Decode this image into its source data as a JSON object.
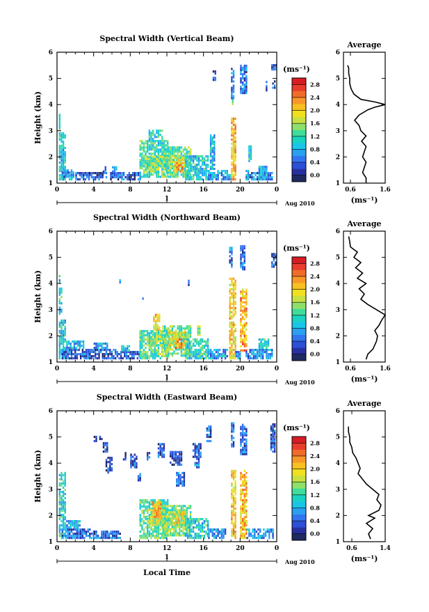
{
  "figure": {
    "xlabel": "Local Time",
    "date_label": "Aug 2010",
    "colorbar_unit": "(ms⁻¹)",
    "colorbar_ticks": [
      "0.0",
      "0.4",
      "0.8",
      "1.2",
      "1.6",
      "2.0",
      "2.4",
      "2.8"
    ],
    "colormap": [
      "#1f2a60",
      "#2730a0",
      "#2b4fd6",
      "#3275f0",
      "#2aa0f0",
      "#19c6e8",
      "#19d2c0",
      "#3fdc9a",
      "#8ee06a",
      "#c8e040",
      "#f0e020",
      "#f8c020",
      "#f89828",
      "#f06c28",
      "#e83c2c",
      "#d81c24"
    ]
  },
  "chart_data": [
    {
      "type": "heatmap",
      "title": "Spectral Width (Vertical Beam)",
      "ylabel": "Height (km)",
      "x_ticks": [
        "0",
        "4",
        "8",
        "12",
        "16",
        "20",
        "0"
      ],
      "y_ticks": [
        "1",
        "2",
        "3",
        "4",
        "5",
        "6"
      ],
      "xlim": [
        0,
        24
      ],
      "ylim": [
        1,
        6
      ],
      "day_ticks": [
        "1"
      ],
      "average": {
        "title": "Average",
        "xlabel": "(ms⁻¹)",
        "x_ticks": [
          "0.6",
          "1.6"
        ],
        "xlim": [
          0.4,
          1.6
        ],
        "profile": [
          [
            1.0,
            1.05
          ],
          [
            1.2,
            1.05
          ],
          [
            1.4,
            0.95
          ],
          [
            1.6,
            1.0
          ],
          [
            1.8,
            1.05
          ],
          [
            2.0,
            0.95
          ],
          [
            2.2,
            1.0
          ],
          [
            2.4,
            1.05
          ],
          [
            2.6,
            0.92
          ],
          [
            2.8,
            1.05
          ],
          [
            3.0,
            0.9
          ],
          [
            3.2,
            0.85
          ],
          [
            3.4,
            0.72
          ],
          [
            3.6,
            0.85
          ],
          [
            3.8,
            1.1
          ],
          [
            3.9,
            1.3
          ],
          [
            4.0,
            1.6
          ],
          [
            4.1,
            1.3
          ],
          [
            4.2,
            0.9
          ],
          [
            4.4,
            0.7
          ],
          [
            4.6,
            0.62
          ],
          [
            4.8,
            0.58
          ],
          [
            5.0,
            0.58
          ],
          [
            5.2,
            0.55
          ],
          [
            5.4,
            0.55
          ],
          [
            5.5,
            0.52
          ]
        ]
      },
      "blocks": [
        [
          0.2,
          1.1,
          1.0,
          2.9,
          1.2
        ],
        [
          0.2,
          3.0,
          0.4,
          3.6,
          1.4
        ],
        [
          0.5,
          1.2,
          1.8,
          1.5,
          0.8
        ],
        [
          1.3,
          1.1,
          1.8,
          1.3,
          1.0
        ],
        [
          2.0,
          1.1,
          3.5,
          1.4,
          0.6
        ],
        [
          3.5,
          1.1,
          5.5,
          1.4,
          0.5
        ],
        [
          5.0,
          1.4,
          5.4,
          1.6,
          0.8
        ],
        [
          5.8,
          1.1,
          7.5,
          1.4,
          0.6
        ],
        [
          6.0,
          1.4,
          6.6,
          1.6,
          1.0
        ],
        [
          7.6,
          1.1,
          9.0,
          1.4,
          0.5
        ],
        [
          9.0,
          1.2,
          12.0,
          2.6,
          1.4
        ],
        [
          9.6,
          1.4,
          11.6,
          2.0,
          1.7
        ],
        [
          10.0,
          2.4,
          11.5,
          3.0,
          1.3
        ],
        [
          11.7,
          1.2,
          14.5,
          2.4,
          1.5
        ],
        [
          12.2,
          1.6,
          13.8,
          2.0,
          1.9
        ],
        [
          12.8,
          1.4,
          13.6,
          1.8,
          2.4
        ],
        [
          14.0,
          1.1,
          16.5,
          2.0,
          1.2
        ],
        [
          16.5,
          1.1,
          18.5,
          1.5,
          0.8
        ],
        [
          16.7,
          1.5,
          17.2,
          2.8,
          1.1
        ],
        [
          18.5,
          1.1,
          19.0,
          1.3,
          0.9
        ],
        [
          19.0,
          1.1,
          19.5,
          3.5,
          2.3
        ],
        [
          19.1,
          3.9,
          19.3,
          4.3,
          1.9
        ],
        [
          19.0,
          4.2,
          19.4,
          5.4,
          0.7
        ],
        [
          20.0,
          4.4,
          20.6,
          5.5,
          0.6
        ],
        [
          20.6,
          1.1,
          21.0,
          1.5,
          1.0
        ],
        [
          20.9,
          1.8,
          21.2,
          2.4,
          1.3
        ],
        [
          21.0,
          1.1,
          23.5,
          1.4,
          0.7
        ],
        [
          22.0,
          1.1,
          22.8,
          1.6,
          1.1
        ],
        [
          17.0,
          4.9,
          17.3,
          5.3,
          0.6
        ],
        [
          22.8,
          4.5,
          23.0,
          4.9,
          0.6
        ],
        [
          23.5,
          4.6,
          23.9,
          4.9,
          0.5
        ],
        [
          23.4,
          5.3,
          23.8,
          5.5,
          0.5
        ]
      ]
    },
    {
      "type": "heatmap",
      "title": "Spectral Width (Northward Beam)",
      "ylabel": "Height (km)",
      "x_ticks": [
        "0",
        "4",
        "8",
        "12",
        "16",
        "20",
        "0"
      ],
      "y_ticks": [
        "1",
        "2",
        "3",
        "4",
        "5",
        "6"
      ],
      "xlim": [
        0,
        24
      ],
      "ylim": [
        1,
        6
      ],
      "day_ticks": [
        "1"
      ],
      "average": {
        "title": "Average",
        "xlabel": "(ms⁻¹)",
        "x_ticks": [
          "0.6",
          "1.6"
        ],
        "xlim": [
          0.4,
          1.6
        ],
        "profile": [
          [
            1.1,
            1.05
          ],
          [
            1.3,
            1.1
          ],
          [
            1.5,
            1.25
          ],
          [
            1.8,
            1.35
          ],
          [
            2.0,
            1.38
          ],
          [
            2.2,
            1.3
          ],
          [
            2.4,
            1.42
          ],
          [
            2.6,
            1.5
          ],
          [
            2.8,
            1.6
          ],
          [
            3.0,
            1.35
          ],
          [
            3.2,
            1.1
          ],
          [
            3.4,
            0.9
          ],
          [
            3.6,
            1.0
          ],
          [
            3.8,
            0.85
          ],
          [
            4.0,
            1.05
          ],
          [
            4.2,
            0.8
          ],
          [
            4.4,
            0.95
          ],
          [
            4.6,
            0.75
          ],
          [
            4.8,
            0.9
          ],
          [
            5.0,
            0.7
          ],
          [
            5.2,
            0.8
          ],
          [
            5.4,
            0.6
          ],
          [
            5.6,
            0.58
          ],
          [
            5.8,
            0.55
          ]
        ]
      },
      "blocks": [
        [
          0.2,
          1.1,
          1.0,
          2.6,
          1.2
        ],
        [
          0.2,
          2.8,
          0.5,
          3.8,
          1.3
        ],
        [
          0.2,
          4.0,
          0.4,
          4.3,
          1.1
        ],
        [
          0.5,
          1.1,
          3.5,
          1.5,
          0.6
        ],
        [
          1.0,
          1.5,
          3.0,
          1.8,
          1.0
        ],
        [
          3.5,
          1.1,
          6.5,
          1.5,
          0.5
        ],
        [
          4.0,
          1.5,
          5.5,
          1.7,
          0.9
        ],
        [
          6.5,
          1.1,
          9.0,
          1.4,
          0.6
        ],
        [
          7.0,
          1.4,
          8.0,
          1.6,
          1.1
        ],
        [
          9.0,
          1.1,
          12.0,
          2.2,
          1.5
        ],
        [
          9.8,
          1.6,
          11.5,
          2.0,
          1.8
        ],
        [
          10.5,
          2.2,
          11.2,
          2.8,
          2.2
        ],
        [
          11.5,
          1.2,
          14.5,
          2.4,
          1.6
        ],
        [
          12.2,
          1.6,
          13.8,
          2.1,
          2.0
        ],
        [
          12.9,
          1.5,
          13.6,
          1.9,
          2.6
        ],
        [
          14.0,
          1.1,
          16.5,
          1.9,
          1.3
        ],
        [
          15.3,
          2.0,
          15.7,
          2.4,
          1.9
        ],
        [
          16.5,
          1.1,
          18.5,
          1.5,
          0.9
        ],
        [
          18.8,
          1.1,
          19.5,
          4.2,
          2.2
        ],
        [
          18.8,
          4.6,
          19.2,
          5.4,
          0.6
        ],
        [
          19.5,
          1.1,
          20.0,
          1.4,
          0.9
        ],
        [
          20.0,
          1.4,
          20.6,
          3.8,
          2.4
        ],
        [
          20.0,
          4.5,
          20.5,
          5.4,
          0.6
        ],
        [
          20.6,
          1.1,
          23.5,
          1.5,
          0.8
        ],
        [
          22.0,
          1.5,
          23.0,
          1.9,
          1.2
        ],
        [
          23.4,
          4.6,
          23.9,
          5.1,
          0.5
        ],
        [
          6.8,
          4.0,
          7.0,
          4.2,
          0.6
        ],
        [
          9.3,
          3.3,
          9.5,
          3.5,
          0.5
        ],
        [
          14.3,
          3.9,
          14.5,
          4.1,
          0.6
        ]
      ]
    },
    {
      "type": "heatmap",
      "title": "Spectral Width (Eastward Beam)",
      "ylabel": "Height (km)",
      "x_ticks": [
        "0",
        "4",
        "8",
        "12",
        "16",
        "20",
        "0"
      ],
      "y_ticks": [
        "1",
        "2",
        "3",
        "4",
        "5",
        "6"
      ],
      "xlim": [
        0,
        24
      ],
      "ylim": [
        1,
        6
      ],
      "day_ticks": [
        "1"
      ],
      "average": {
        "title": "Average",
        "xlabel": "(ms⁻¹)",
        "x_ticks": [
          "0.6",
          "1.4"
        ],
        "xlim": [
          0.4,
          1.4
        ],
        "profile": [
          [
            1.1,
            1.05
          ],
          [
            1.3,
            1.0
          ],
          [
            1.5,
            1.1
          ],
          [
            1.7,
            0.95
          ],
          [
            1.9,
            1.15
          ],
          [
            2.0,
            1.0
          ],
          [
            2.2,
            1.25
          ],
          [
            2.4,
            1.3
          ],
          [
            2.6,
            1.2
          ],
          [
            2.8,
            1.25
          ],
          [
            3.0,
            1.1
          ],
          [
            3.2,
            0.95
          ],
          [
            3.4,
            0.85
          ],
          [
            3.6,
            0.75
          ],
          [
            3.8,
            0.8
          ],
          [
            4.0,
            0.75
          ],
          [
            4.2,
            0.7
          ],
          [
            4.4,
            0.62
          ],
          [
            4.6,
            0.6
          ],
          [
            4.8,
            0.55
          ],
          [
            5.0,
            0.55
          ],
          [
            5.2,
            0.52
          ],
          [
            5.4,
            0.52
          ]
        ]
      },
      "blocks": [
        [
          0.2,
          1.1,
          1.0,
          3.6,
          1.3
        ],
        [
          0.5,
          1.1,
          4.0,
          1.5,
          0.7
        ],
        [
          1.0,
          1.5,
          2.5,
          1.8,
          1.0
        ],
        [
          4.0,
          1.1,
          7.0,
          1.4,
          0.6
        ],
        [
          5.0,
          4.4,
          5.6,
          4.8,
          0.4
        ],
        [
          5.3,
          3.6,
          6.0,
          4.2,
          0.5
        ],
        [
          4.0,
          4.8,
          5.0,
          5.0,
          0.4
        ],
        [
          7.2,
          4.1,
          7.6,
          4.4,
          0.4
        ],
        [
          8.0,
          3.8,
          8.6,
          4.3,
          0.5
        ],
        [
          8.8,
          3.3,
          9.2,
          3.6,
          0.6
        ],
        [
          9.0,
          1.1,
          12.0,
          2.6,
          1.5
        ],
        [
          9.8,
          1.6,
          11.6,
          2.2,
          1.9
        ],
        [
          10.4,
          1.9,
          11.2,
          2.5,
          2.4
        ],
        [
          11.5,
          1.2,
          14.5,
          2.4,
          1.6
        ],
        [
          12.2,
          1.6,
          13.8,
          2.1,
          2.0
        ],
        [
          12.3,
          3.9,
          13.5,
          4.4,
          0.5
        ],
        [
          13.0,
          3.1,
          13.8,
          3.6,
          0.6
        ],
        [
          14.0,
          1.1,
          16.5,
          1.9,
          1.2
        ],
        [
          14.8,
          4.2,
          15.6,
          4.7,
          0.5
        ],
        [
          15.0,
          3.8,
          15.4,
          4.2,
          0.7
        ],
        [
          16.5,
          1.1,
          18.3,
          1.5,
          0.9
        ],
        [
          16.3,
          4.8,
          16.9,
          5.4,
          0.6
        ],
        [
          19.0,
          1.1,
          19.5,
          3.7,
          2.2
        ],
        [
          19.0,
          4.6,
          19.4,
          5.5,
          0.7
        ],
        [
          20.0,
          1.1,
          20.7,
          3.7,
          2.3
        ],
        [
          20.0,
          4.3,
          20.6,
          5.5,
          0.6
        ],
        [
          20.7,
          1.1,
          23.5,
          1.5,
          0.9
        ],
        [
          23.3,
          4.4,
          23.9,
          5.5,
          0.5
        ],
        [
          9.8,
          4.1,
          10.2,
          4.4,
          0.5
        ],
        [
          11.0,
          4.2,
          11.6,
          4.7,
          0.5
        ]
      ]
    }
  ]
}
